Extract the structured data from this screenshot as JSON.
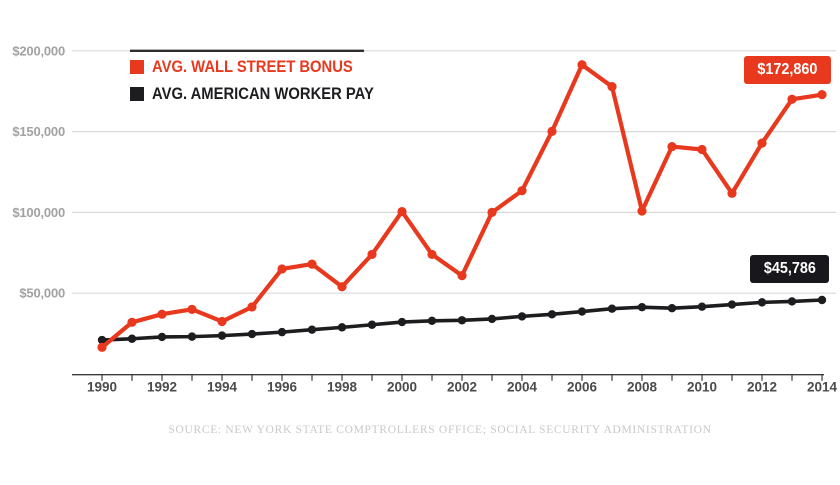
{
  "chart_data": {
    "type": "line",
    "title": "",
    "x": [
      1990,
      1991,
      1992,
      1993,
      1994,
      1995,
      1996,
      1997,
      1998,
      1999,
      2000,
      2001,
      2002,
      2003,
      2004,
      2005,
      2006,
      2007,
      2008,
      2009,
      2010,
      2011,
      2012,
      2013,
      2014
    ],
    "series": [
      {
        "name": "AVG. WALL STREET BONUS",
        "color": "#e8391f",
        "values": [
          16500,
          32000,
          37000,
          40000,
          32500,
          41500,
          65000,
          68000,
          54000,
          74000,
          100530,
          74000,
          60890,
          100000,
          113450,
          150160,
          191360,
          177830,
          100850,
          140730,
          138940,
          111810,
          142860,
          170000,
          172860
        ]
      },
      {
        "name": "AVG. AMERICAN WORKER PAY",
        "color": "#1d1d20",
        "values": [
          21030,
          21810,
          22940,
          23130,
          23750,
          24710,
          25910,
          27430,
          28860,
          30470,
          32150,
          32920,
          33250,
          34060,
          35650,
          36950,
          38650,
          40410,
          41330,
          40710,
          41670,
          42980,
          44320,
          44890,
          45786
        ]
      }
    ],
    "y_ticks": [
      {
        "value": 50000,
        "label": "$50,000"
      },
      {
        "value": 100000,
        "label": "$100,000"
      },
      {
        "value": 150000,
        "label": "$150,000"
      },
      {
        "value": 200000,
        "label": "$200,000"
      }
    ],
    "ylim": [
      0,
      215000
    ],
    "x_tick_labels": [
      "1990",
      "1992",
      "1994",
      "1996",
      "1998",
      "2000",
      "2002",
      "2004",
      "2006",
      "2008",
      "2010",
      "2012",
      "2014"
    ],
    "x_tick_interval_labeled": 2,
    "grid": "horizontal",
    "legend_position": "top-left",
    "annotations": [
      {
        "series": "AVG. WALL STREET BONUS",
        "x": 2014,
        "label": "$172,860"
      },
      {
        "series": "AVG. AMERICAN WORKER PAY",
        "x": 2014,
        "label": "$45,786"
      }
    ],
    "source": "SOURCE: NEW YORK STATE COMPTROLLERS OFFICE; SOCIAL SECURITY ADMINISTRATION"
  },
  "colors": {
    "bonus_red": "#e8391f",
    "worker_black": "#1d1d20",
    "gridline": "#d8d8d8",
    "legend_rule": "#2e2e2e",
    "axis": "#3c3c3c",
    "y_label": "#a2a2a2",
    "x_label": "#4b4b4b",
    "callout_black_bg": "#18181c",
    "source_text": "#c8c8c8"
  }
}
